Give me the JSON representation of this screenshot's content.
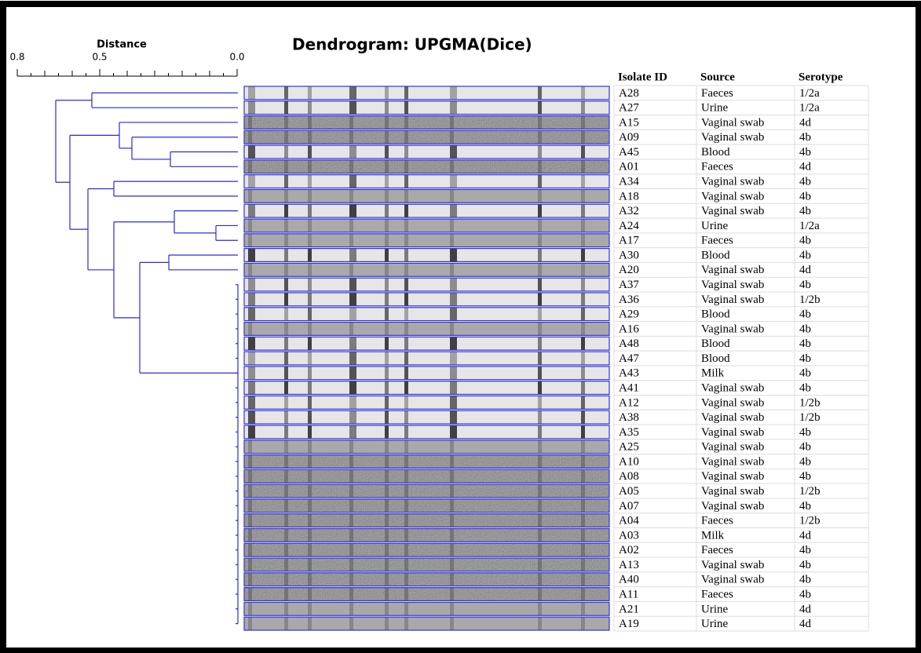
{
  "title": "Dendrogram: UPGMA(Dice)",
  "axis": {
    "label": "Distance",
    "ticks": [
      0.8,
      0.5,
      {
        "value": 0,
        "label": "0.0"
      }
    ]
  },
  "table": {
    "columns": [
      "Isolate ID",
      "Source",
      "Serotype"
    ],
    "rows": [
      [
        "A28",
        "Faeces",
        "1/2a"
      ],
      [
        "A27",
        "Urine",
        "1/2a"
      ],
      [
        "A15",
        "Vaginal swab",
        "4d"
      ],
      [
        "A09",
        "Vaginal swab",
        "4b"
      ],
      [
        "A45",
        "Blood",
        "4b"
      ],
      [
        "A01",
        "Faeces",
        "4d"
      ],
      [
        "A34",
        "Vaginal swab",
        "4b"
      ],
      [
        "A18",
        "Vaginal swab",
        "4b"
      ],
      [
        "A32",
        "Vaginal swab",
        "4b"
      ],
      [
        "A24",
        "Urine",
        "1/2a"
      ],
      [
        "A17",
        "Faeces",
        "4b"
      ],
      [
        "A30",
        "Blood",
        "4b"
      ],
      [
        "A20",
        "Vaginal swab",
        "4d"
      ],
      [
        "A37",
        "Vaginal swab",
        "4b"
      ],
      [
        "A36",
        "Vaginal swab",
        "1/2b"
      ],
      [
        "A29",
        "Blood",
        "4b"
      ],
      [
        "A16",
        "Vaginal swab",
        "4b"
      ],
      [
        "A48",
        "Blood",
        "4b"
      ],
      [
        "A47",
        "Blood",
        "4b"
      ],
      [
        "A43",
        "Milk",
        "4b"
      ],
      [
        "A41",
        "Vaginal swab",
        "4b"
      ],
      [
        "A12",
        "Vaginal swab",
        "1/2b"
      ],
      [
        "A38",
        "Vaginal swab",
        "1/2b"
      ],
      [
        "A35",
        "Vaginal swab",
        "4b"
      ],
      [
        "A25",
        "Vaginal swab",
        "4b"
      ],
      [
        "A10",
        "Vaginal swab",
        "4b"
      ],
      [
        "A08",
        "Vaginal swab",
        "4b"
      ],
      [
        "A05",
        "Vaginal swab",
        "1/2b"
      ],
      [
        "A07",
        "Vaginal swab",
        "4b"
      ],
      [
        "A04",
        "Faeces",
        "1/2b"
      ],
      [
        "A03",
        "Milk",
        "4d"
      ],
      [
        "A02",
        "Faeces",
        "4b"
      ],
      [
        "A13",
        "Vaginal swab",
        "4b"
      ],
      [
        "A40",
        "Vaginal swab",
        "4b"
      ],
      [
        "A11",
        "Faeces",
        "4b"
      ],
      [
        "A21",
        "Urine",
        "4d"
      ],
      [
        "A19",
        "Urine",
        "4d"
      ]
    ]
  }
}
